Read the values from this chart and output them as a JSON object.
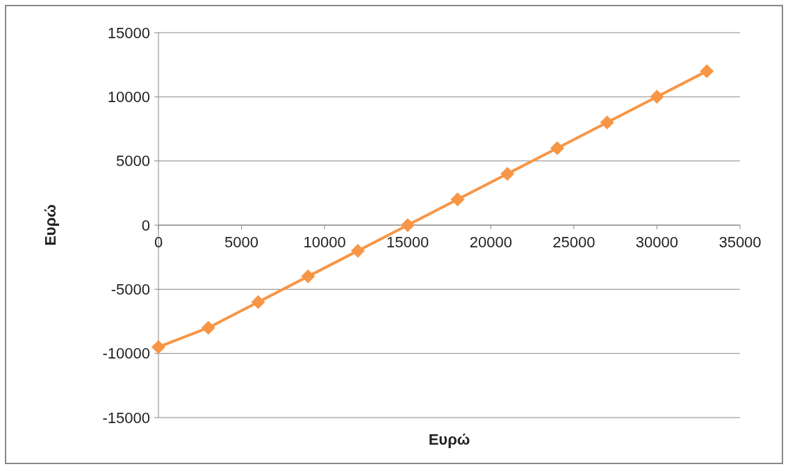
{
  "chart_data": {
    "type": "line",
    "xlabel": "Ευρώ",
    "ylabel": "Ευρώ",
    "x": [
      0,
      3000,
      6000,
      9000,
      12000,
      15000,
      18000,
      21000,
      24000,
      27000,
      30000,
      33000
    ],
    "series": [
      {
        "color": "#f79646",
        "values": [
          -9500,
          -8000,
          -6000,
          -4000,
          -2000,
          0,
          2000,
          4000,
          6000,
          8000,
          10000,
          12000
        ]
      }
    ],
    "xlim": [
      0,
      35000
    ],
    "xticks": [
      0,
      5000,
      10000,
      15000,
      20000,
      25000,
      30000,
      35000
    ],
    "ylim": [
      -15000,
      15000
    ],
    "yticks": [
      -15000,
      -10000,
      -5000,
      0,
      5000,
      10000,
      15000
    ],
    "grid": "y",
    "marker": "diamond",
    "line_style": "solid"
  }
}
